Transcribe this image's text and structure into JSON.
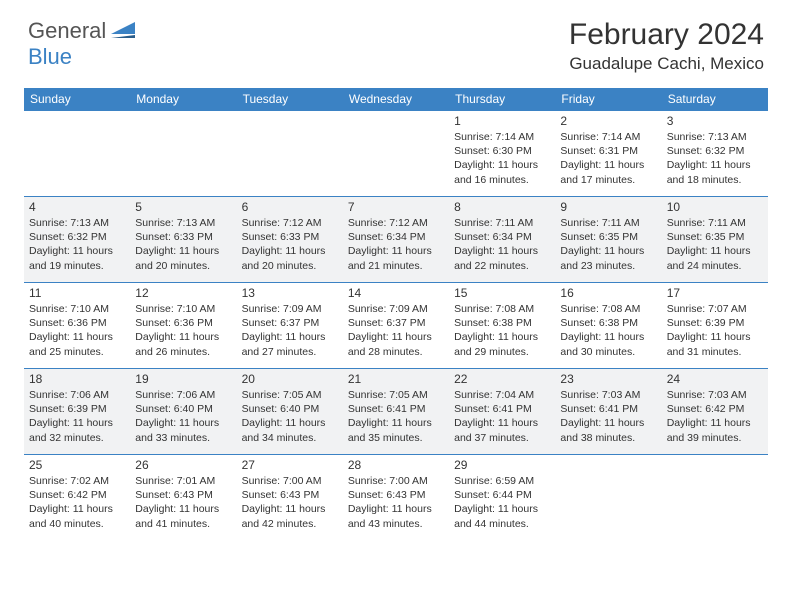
{
  "logo": {
    "text1": "General",
    "text2": "Blue"
  },
  "title": "February 2024",
  "location": "Guadalupe Cachi, Mexico",
  "colors": {
    "accent": "#3b82c4",
    "alt_row_bg": "#f1f2f3",
    "text": "#333333",
    "white": "#ffffff"
  },
  "days_of_week": [
    "Sunday",
    "Monday",
    "Tuesday",
    "Wednesday",
    "Thursday",
    "Friday",
    "Saturday"
  ],
  "weeks": [
    {
      "alt": false,
      "cells": [
        {
          "day": "",
          "sunrise": "",
          "sunset": "",
          "daylight": ""
        },
        {
          "day": "",
          "sunrise": "",
          "sunset": "",
          "daylight": ""
        },
        {
          "day": "",
          "sunrise": "",
          "sunset": "",
          "daylight": ""
        },
        {
          "day": "",
          "sunrise": "",
          "sunset": "",
          "daylight": ""
        },
        {
          "day": "1",
          "sunrise": "Sunrise: 7:14 AM",
          "sunset": "Sunset: 6:30 PM",
          "daylight": "Daylight: 11 hours and 16 minutes."
        },
        {
          "day": "2",
          "sunrise": "Sunrise: 7:14 AM",
          "sunset": "Sunset: 6:31 PM",
          "daylight": "Daylight: 11 hours and 17 minutes."
        },
        {
          "day": "3",
          "sunrise": "Sunrise: 7:13 AM",
          "sunset": "Sunset: 6:32 PM",
          "daylight": "Daylight: 11 hours and 18 minutes."
        }
      ]
    },
    {
      "alt": true,
      "cells": [
        {
          "day": "4",
          "sunrise": "Sunrise: 7:13 AM",
          "sunset": "Sunset: 6:32 PM",
          "daylight": "Daylight: 11 hours and 19 minutes."
        },
        {
          "day": "5",
          "sunrise": "Sunrise: 7:13 AM",
          "sunset": "Sunset: 6:33 PM",
          "daylight": "Daylight: 11 hours and 20 minutes."
        },
        {
          "day": "6",
          "sunrise": "Sunrise: 7:12 AM",
          "sunset": "Sunset: 6:33 PM",
          "daylight": "Daylight: 11 hours and 20 minutes."
        },
        {
          "day": "7",
          "sunrise": "Sunrise: 7:12 AM",
          "sunset": "Sunset: 6:34 PM",
          "daylight": "Daylight: 11 hours and 21 minutes."
        },
        {
          "day": "8",
          "sunrise": "Sunrise: 7:11 AM",
          "sunset": "Sunset: 6:34 PM",
          "daylight": "Daylight: 11 hours and 22 minutes."
        },
        {
          "day": "9",
          "sunrise": "Sunrise: 7:11 AM",
          "sunset": "Sunset: 6:35 PM",
          "daylight": "Daylight: 11 hours and 23 minutes."
        },
        {
          "day": "10",
          "sunrise": "Sunrise: 7:11 AM",
          "sunset": "Sunset: 6:35 PM",
          "daylight": "Daylight: 11 hours and 24 minutes."
        }
      ]
    },
    {
      "alt": false,
      "cells": [
        {
          "day": "11",
          "sunrise": "Sunrise: 7:10 AM",
          "sunset": "Sunset: 6:36 PM",
          "daylight": "Daylight: 11 hours and 25 minutes."
        },
        {
          "day": "12",
          "sunrise": "Sunrise: 7:10 AM",
          "sunset": "Sunset: 6:36 PM",
          "daylight": "Daylight: 11 hours and 26 minutes."
        },
        {
          "day": "13",
          "sunrise": "Sunrise: 7:09 AM",
          "sunset": "Sunset: 6:37 PM",
          "daylight": "Daylight: 11 hours and 27 minutes."
        },
        {
          "day": "14",
          "sunrise": "Sunrise: 7:09 AM",
          "sunset": "Sunset: 6:37 PM",
          "daylight": "Daylight: 11 hours and 28 minutes."
        },
        {
          "day": "15",
          "sunrise": "Sunrise: 7:08 AM",
          "sunset": "Sunset: 6:38 PM",
          "daylight": "Daylight: 11 hours and 29 minutes."
        },
        {
          "day": "16",
          "sunrise": "Sunrise: 7:08 AM",
          "sunset": "Sunset: 6:38 PM",
          "daylight": "Daylight: 11 hours and 30 minutes."
        },
        {
          "day": "17",
          "sunrise": "Sunrise: 7:07 AM",
          "sunset": "Sunset: 6:39 PM",
          "daylight": "Daylight: 11 hours and 31 minutes."
        }
      ]
    },
    {
      "alt": true,
      "cells": [
        {
          "day": "18",
          "sunrise": "Sunrise: 7:06 AM",
          "sunset": "Sunset: 6:39 PM",
          "daylight": "Daylight: 11 hours and 32 minutes."
        },
        {
          "day": "19",
          "sunrise": "Sunrise: 7:06 AM",
          "sunset": "Sunset: 6:40 PM",
          "daylight": "Daylight: 11 hours and 33 minutes."
        },
        {
          "day": "20",
          "sunrise": "Sunrise: 7:05 AM",
          "sunset": "Sunset: 6:40 PM",
          "daylight": "Daylight: 11 hours and 34 minutes."
        },
        {
          "day": "21",
          "sunrise": "Sunrise: 7:05 AM",
          "sunset": "Sunset: 6:41 PM",
          "daylight": "Daylight: 11 hours and 35 minutes."
        },
        {
          "day": "22",
          "sunrise": "Sunrise: 7:04 AM",
          "sunset": "Sunset: 6:41 PM",
          "daylight": "Daylight: 11 hours and 37 minutes."
        },
        {
          "day": "23",
          "sunrise": "Sunrise: 7:03 AM",
          "sunset": "Sunset: 6:41 PM",
          "daylight": "Daylight: 11 hours and 38 minutes."
        },
        {
          "day": "24",
          "sunrise": "Sunrise: 7:03 AM",
          "sunset": "Sunset: 6:42 PM",
          "daylight": "Daylight: 11 hours and 39 minutes."
        }
      ]
    },
    {
      "alt": false,
      "cells": [
        {
          "day": "25",
          "sunrise": "Sunrise: 7:02 AM",
          "sunset": "Sunset: 6:42 PM",
          "daylight": "Daylight: 11 hours and 40 minutes."
        },
        {
          "day": "26",
          "sunrise": "Sunrise: 7:01 AM",
          "sunset": "Sunset: 6:43 PM",
          "daylight": "Daylight: 11 hours and 41 minutes."
        },
        {
          "day": "27",
          "sunrise": "Sunrise: 7:00 AM",
          "sunset": "Sunset: 6:43 PM",
          "daylight": "Daylight: 11 hours and 42 minutes."
        },
        {
          "day": "28",
          "sunrise": "Sunrise: 7:00 AM",
          "sunset": "Sunset: 6:43 PM",
          "daylight": "Daylight: 11 hours and 43 minutes."
        },
        {
          "day": "29",
          "sunrise": "Sunrise: 6:59 AM",
          "sunset": "Sunset: 6:44 PM",
          "daylight": "Daylight: 11 hours and 44 minutes."
        },
        {
          "day": "",
          "sunrise": "",
          "sunset": "",
          "daylight": ""
        },
        {
          "day": "",
          "sunrise": "",
          "sunset": "",
          "daylight": ""
        }
      ]
    }
  ]
}
